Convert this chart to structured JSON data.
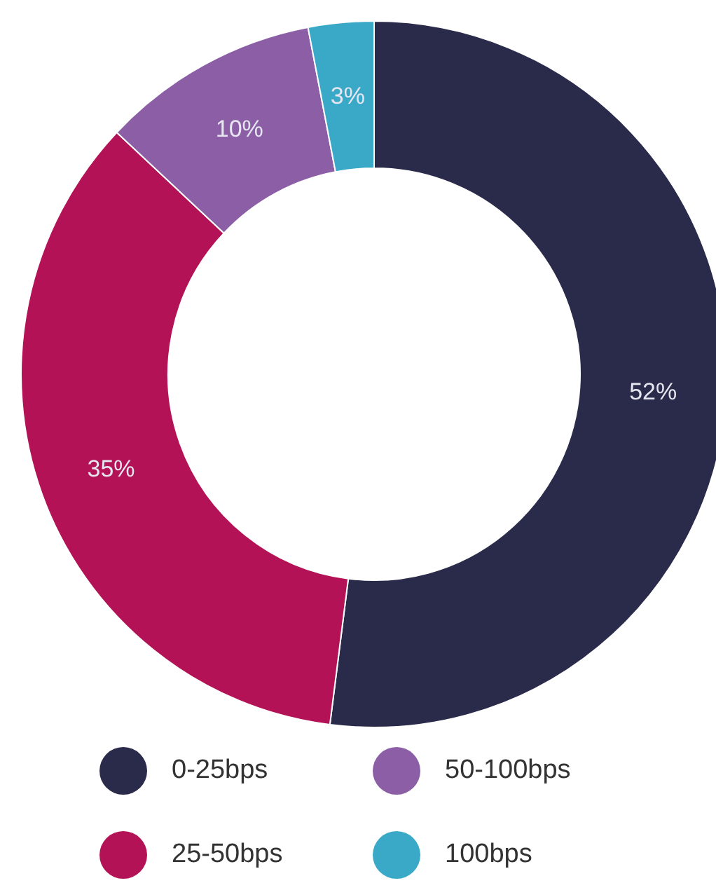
{
  "chart_data": {
    "type": "donut",
    "categories": [
      "0-25bps",
      "25-50bps",
      "50-100bps",
      "100bps"
    ],
    "values": [
      52,
      35,
      10,
      3
    ],
    "colors": [
      "#2a2a4a",
      "#b31356",
      "#8b5ea6",
      "#3aa9c8"
    ],
    "value_labels": [
      "52%",
      "35%",
      "10%",
      "3%"
    ],
    "legend": "bottom"
  }
}
